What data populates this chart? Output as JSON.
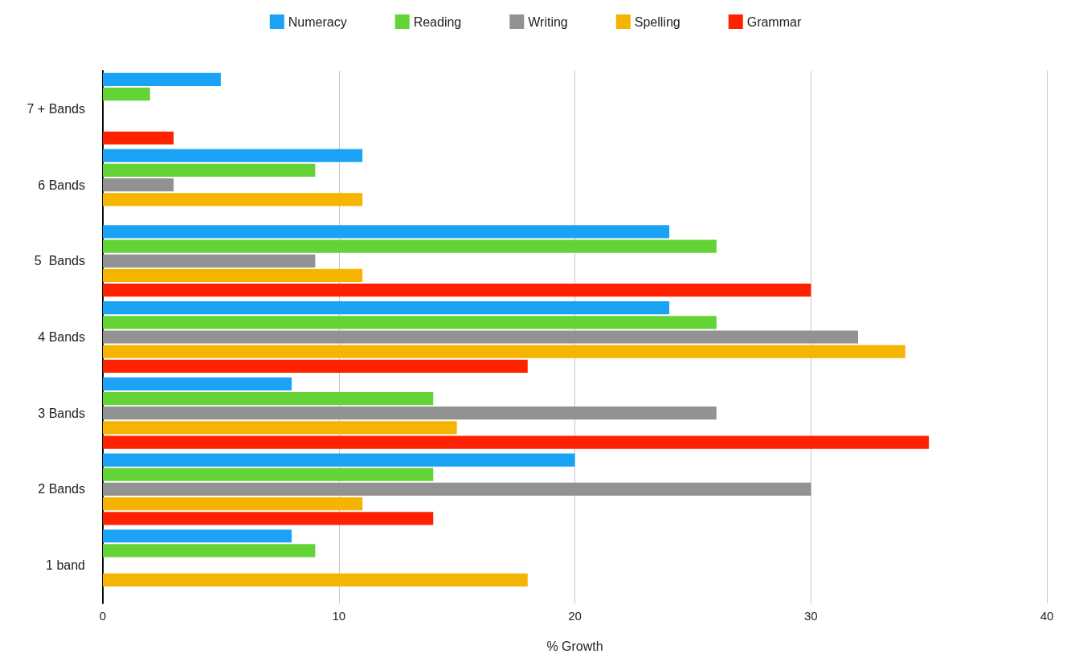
{
  "chart_data": {
    "type": "bar",
    "orientation": "horizontal",
    "xlabel": "% Growth",
    "categories": [
      "7 + Bands",
      "6 Bands",
      "5  Bands",
      "4 Bands",
      "3 Bands",
      "2 Bands",
      "1 band"
    ],
    "series": [
      {
        "name": "Numeracy",
        "color": "#1aa3f5",
        "values": [
          5,
          11,
          24,
          24,
          8,
          20,
          8
        ]
      },
      {
        "name": "Reading",
        "color": "#63d336",
        "values": [
          2,
          9,
          26,
          26,
          14,
          14,
          9
        ]
      },
      {
        "name": "Writing",
        "color": "#929292",
        "values": [
          null,
          3,
          9,
          32,
          26,
          30,
          null
        ]
      },
      {
        "name": "Spelling",
        "color": "#f5b400",
        "values": [
          null,
          11,
          11,
          34,
          15,
          11,
          18
        ]
      },
      {
        "name": "Grammar",
        "color": "#ff2200",
        "values": [
          3,
          null,
          30,
          18,
          35,
          14,
          null
        ]
      }
    ],
    "xlim": [
      0,
      40
    ],
    "xticks": [
      0,
      10,
      20,
      30,
      40
    ],
    "grid": "x",
    "legend": "top"
  }
}
